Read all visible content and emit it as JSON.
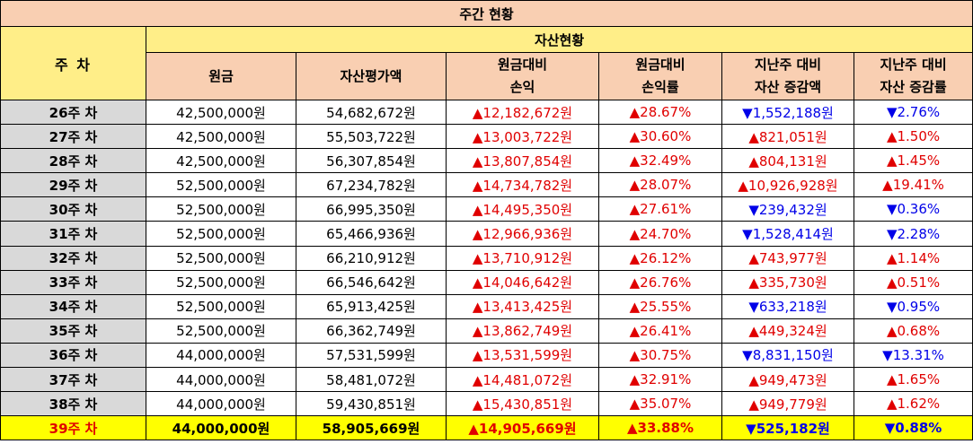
{
  "title": "주간 현황",
  "header": {
    "week": "주 차",
    "asset_group": "자산현황",
    "principal": "원금",
    "asset_value": "자산평가액",
    "pl_line1": "원금대비",
    "pl_line2": "손익",
    "plrate_line1": "원금대비",
    "plrate_line2": "손익률",
    "chg_line1": "지난주 대비",
    "chg_line2": "자산 증감액",
    "chgrate_line1": "지난주 대비",
    "chgrate_line2": "자산 증감률"
  },
  "rows": [
    {
      "week": "26주 차",
      "principal": "42,500,000원",
      "value": "54,682,672원",
      "pl": "▲12,182,672원",
      "pl_dir": "up",
      "plrate": "▲28.67%",
      "plrate_dir": "up",
      "chg": "▼1,552,188원",
      "chg_dir": "down",
      "chgrate": "▼2.76%",
      "chgrate_dir": "down"
    },
    {
      "week": "27주 차",
      "principal": "42,500,000원",
      "value": "55,503,722원",
      "pl": "▲13,003,722원",
      "pl_dir": "up",
      "plrate": "▲30.60%",
      "plrate_dir": "up",
      "chg": "▲821,051원",
      "chg_dir": "up",
      "chgrate": "▲1.50%",
      "chgrate_dir": "up"
    },
    {
      "week": "28주 차",
      "principal": "42,500,000원",
      "value": "56,307,854원",
      "pl": "▲13,807,854원",
      "pl_dir": "up",
      "plrate": "▲32.49%",
      "plrate_dir": "up",
      "chg": "▲804,131원",
      "chg_dir": "up",
      "chgrate": "▲1.45%",
      "chgrate_dir": "up"
    },
    {
      "week": "29주 차",
      "principal": "52,500,000원",
      "value": "67,234,782원",
      "pl": "▲14,734,782원",
      "pl_dir": "up",
      "plrate": "▲28.07%",
      "plrate_dir": "up",
      "chg": "▲10,926,928원",
      "chg_dir": "up",
      "chgrate": "▲19.41%",
      "chgrate_dir": "up"
    },
    {
      "week": "30주 차",
      "principal": "52,500,000원",
      "value": "66,995,350원",
      "pl": "▲14,495,350원",
      "pl_dir": "up",
      "plrate": "▲27.61%",
      "plrate_dir": "up",
      "chg": "▼239,432원",
      "chg_dir": "down",
      "chgrate": "▼0.36%",
      "chgrate_dir": "down"
    },
    {
      "week": "31주 차",
      "principal": "52,500,000원",
      "value": "65,466,936원",
      "pl": "▲12,966,936원",
      "pl_dir": "up",
      "plrate": "▲24.70%",
      "plrate_dir": "up",
      "chg": "▼1,528,414원",
      "chg_dir": "down",
      "chgrate": "▼2.28%",
      "chgrate_dir": "down"
    },
    {
      "week": "32주 차",
      "principal": "52,500,000원",
      "value": "66,210,912원",
      "pl": "▲13,710,912원",
      "pl_dir": "up",
      "plrate": "▲26.12%",
      "plrate_dir": "up",
      "chg": "▲743,977원",
      "chg_dir": "up",
      "chgrate": "▲1.14%",
      "chgrate_dir": "up"
    },
    {
      "week": "33주 차",
      "principal": "52,500,000원",
      "value": "66,546,642원",
      "pl": "▲14,046,642원",
      "pl_dir": "up",
      "plrate": "▲26.76%",
      "plrate_dir": "up",
      "chg": "▲335,730원",
      "chg_dir": "up",
      "chgrate": "▲0.51%",
      "chgrate_dir": "up"
    },
    {
      "week": "34주 차",
      "principal": "52,500,000원",
      "value": "65,913,425원",
      "pl": "▲13,413,425원",
      "pl_dir": "up",
      "plrate": "▲25.55%",
      "plrate_dir": "up",
      "chg": "▼633,218원",
      "chg_dir": "down",
      "chgrate": "▼0.95%",
      "chgrate_dir": "down"
    },
    {
      "week": "35주 차",
      "principal": "52,500,000원",
      "value": "66,362,749원",
      "pl": "▲13,862,749원",
      "pl_dir": "up",
      "plrate": "▲26.41%",
      "plrate_dir": "up",
      "chg": "▲449,324원",
      "chg_dir": "up",
      "chgrate": "▲0.68%",
      "chgrate_dir": "up"
    },
    {
      "week": "36주 차",
      "principal": "44,000,000원",
      "value": "57,531,599원",
      "pl": "▲13,531,599원",
      "pl_dir": "up",
      "plrate": "▲30.75%",
      "plrate_dir": "up",
      "chg": "▼8,831,150원",
      "chg_dir": "down",
      "chgrate": "▼13.31%",
      "chgrate_dir": "down"
    },
    {
      "week": "37주 차",
      "principal": "44,000,000원",
      "value": "58,481,072원",
      "pl": "▲14,481,072원",
      "pl_dir": "up",
      "plrate": "▲32.91%",
      "plrate_dir": "up",
      "chg": "▲949,473원",
      "chg_dir": "up",
      "chgrate": "▲1.65%",
      "chgrate_dir": "up"
    },
    {
      "week": "38주 차",
      "principal": "44,000,000원",
      "value": "59,430,851원",
      "pl": "▲15,430,851원",
      "pl_dir": "up",
      "plrate": "▲35.07%",
      "plrate_dir": "up",
      "chg": "▲949,779원",
      "chg_dir": "up",
      "chgrate": "▲1.62%",
      "chgrate_dir": "up"
    },
    {
      "week": "39주 차",
      "principal": "44,000,000원",
      "value": "58,905,669원",
      "pl": "▲14,905,669원",
      "pl_dir": "up",
      "plrate": "▲33.88%",
      "plrate_dir": "up",
      "chg": "▼525,182원",
      "chg_dir": "down",
      "chgrate": "▼0.88%",
      "chgrate_dir": "down"
    }
  ],
  "colors": {
    "up": "#e00000",
    "down": "#0000e8",
    "header_orange": "#f9cfb2",
    "header_yellow": "#ffee88",
    "highlight": "#ffff00",
    "week_gray": "#d9d9d9"
  }
}
